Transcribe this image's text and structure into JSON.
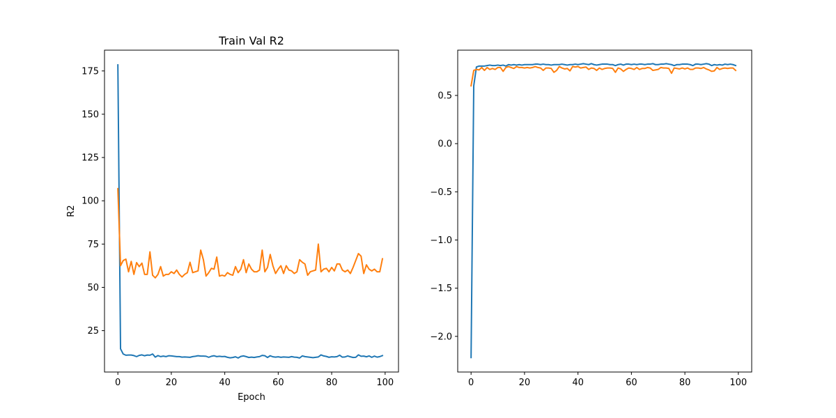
{
  "chart_data": [
    {
      "type": "line",
      "title": "Train Val R2",
      "xlabel": "Epoch",
      "ylabel": "R2",
      "xlim": [
        -5,
        105
      ],
      "ylim": [
        1.1,
        187.0
      ],
      "xticks": [
        0,
        20,
        40,
        60,
        80,
        100
      ],
      "yticks": [
        25,
        50,
        75,
        100,
        125,
        150,
        175
      ],
      "grid": false,
      "legend": "none",
      "x": [
        0,
        1,
        2,
        3,
        4,
        5,
        6,
        7,
        8,
        9,
        10,
        11,
        12,
        13,
        14,
        15,
        16,
        17,
        18,
        19,
        20,
        21,
        22,
        23,
        24,
        25,
        26,
        27,
        28,
        29,
        30,
        31,
        32,
        33,
        34,
        35,
        36,
        37,
        38,
        39,
        40,
        41,
        42,
        43,
        44,
        45,
        46,
        47,
        48,
        49,
        50,
        51,
        52,
        53,
        54,
        55,
        56,
        57,
        58,
        59,
        60,
        61,
        62,
        63,
        64,
        65,
        66,
        67,
        68,
        69,
        70,
        71,
        72,
        73,
        74,
        75,
        76,
        77,
        78,
        79,
        80,
        81,
        82,
        83,
        84,
        85,
        86,
        87,
        88,
        89,
        90,
        91,
        92,
        93,
        94,
        95,
        96,
        97,
        98,
        99
      ],
      "series": [
        {
          "color": "#1f77b4",
          "values": [
            178.5,
            14.5,
            11.5,
            10.8,
            10.9,
            10.9,
            10.6,
            10.0,
            10.7,
            11.0,
            10.5,
            10.9,
            10.8,
            11.5,
            9.7,
            10.6,
            10.0,
            10.3,
            10.0,
            10.5,
            10.4,
            10.2,
            10.0,
            10.0,
            9.7,
            9.8,
            9.7,
            9.6,
            10.0,
            10.2,
            10.5,
            10.3,
            10.3,
            10.2,
            9.6,
            10.2,
            10.5,
            10.0,
            10.2,
            10.0,
            10.1,
            9.6,
            9.3,
            9.5,
            9.9,
            9.2,
            10.1,
            10.4,
            10.0,
            9.5,
            9.7,
            9.5,
            9.8,
            10.0,
            10.7,
            10.5,
            9.5,
            10.5,
            9.9,
            9.7,
            9.9,
            9.6,
            9.8,
            9.7,
            9.6,
            10.0,
            9.7,
            9.6,
            9.2,
            10.4,
            10.0,
            9.8,
            9.6,
            9.4,
            9.6,
            9.8,
            11.0,
            10.4,
            10.1,
            9.6,
            9.9,
            9.8,
            10.0,
            10.8,
            9.7,
            9.8,
            10.4,
            9.9,
            9.5,
            9.6,
            11.0,
            10.2,
            10.3,
            9.9,
            10.4,
            9.6,
            10.3,
            9.7,
            10.0,
            10.6
          ]
        },
        {
          "color": "#ff7f0e",
          "values": [
            107.0,
            62.5,
            65.5,
            66.3,
            59.0,
            65.0,
            57.5,
            64.3,
            62.0,
            64.0,
            57.5,
            57.5,
            70.5,
            57.0,
            55.5,
            57.5,
            62.0,
            56.5,
            57.5,
            57.5,
            59.0,
            58.0,
            60.0,
            57.5,
            56.0,
            57.5,
            58.5,
            64.5,
            58.5,
            59.0,
            59.5,
            71.5,
            66.0,
            56.5,
            58.5,
            61.0,
            60.5,
            67.5,
            56.5,
            57.0,
            56.5,
            58.5,
            57.5,
            57.0,
            62.0,
            58.5,
            60.5,
            66.0,
            58.5,
            63.5,
            60.5,
            59.0,
            59.0,
            60.0,
            71.5,
            59.0,
            61.5,
            69.0,
            62.5,
            58.0,
            60.5,
            62.5,
            58.0,
            62.5,
            60.0,
            59.5,
            58.0,
            59.0,
            66.0,
            64.5,
            63.5,
            57.0,
            59.0,
            59.5,
            60.0,
            75.0,
            59.0,
            60.5,
            61.0,
            59.0,
            61.5,
            59.5,
            63.5,
            63.5,
            60.0,
            59.0,
            60.0,
            58.0,
            61.5,
            65.5,
            69.5,
            68.0,
            58.0,
            63.0,
            60.5,
            59.5,
            60.5,
            59.0,
            59.0,
            66.5
          ]
        }
      ]
    },
    {
      "type": "line",
      "title": "",
      "xlabel": "",
      "ylabel": "",
      "xlim": [
        -5,
        105
      ],
      "ylim": [
        -2.37,
        0.97
      ],
      "xticks": [
        0,
        20,
        40,
        60,
        80,
        100
      ],
      "yticks": [
        -2.0,
        -1.5,
        -1.0,
        -0.5,
        0.0,
        0.5
      ],
      "grid": false,
      "legend": "none",
      "x": [
        0,
        1,
        2,
        3,
        4,
        5,
        6,
        7,
        8,
        9,
        10,
        11,
        12,
        13,
        14,
        15,
        16,
        17,
        18,
        19,
        20,
        21,
        22,
        23,
        24,
        25,
        26,
        27,
        28,
        29,
        30,
        31,
        32,
        33,
        34,
        35,
        36,
        37,
        38,
        39,
        40,
        41,
        42,
        43,
        44,
        45,
        46,
        47,
        48,
        49,
        50,
        51,
        52,
        53,
        54,
        55,
        56,
        57,
        58,
        59,
        60,
        61,
        62,
        63,
        64,
        65,
        66,
        67,
        68,
        69,
        70,
        71,
        72,
        73,
        74,
        75,
        76,
        77,
        78,
        79,
        80,
        81,
        82,
        83,
        84,
        85,
        86,
        87,
        88,
        89,
        90,
        91,
        92,
        93,
        94,
        95,
        96,
        97,
        98,
        99
      ],
      "series": [
        {
          "color": "#1f77b4",
          "values": [
            -2.22,
            0.6,
            0.795,
            0.805,
            0.805,
            0.805,
            0.81,
            0.815,
            0.81,
            0.81,
            0.815,
            0.81,
            0.815,
            0.805,
            0.82,
            0.815,
            0.82,
            0.815,
            0.82,
            0.815,
            0.82,
            0.82,
            0.82,
            0.82,
            0.825,
            0.825,
            0.82,
            0.825,
            0.82,
            0.82,
            0.815,
            0.82,
            0.82,
            0.82,
            0.825,
            0.82,
            0.815,
            0.82,
            0.82,
            0.825,
            0.82,
            0.825,
            0.83,
            0.825,
            0.82,
            0.83,
            0.82,
            0.815,
            0.82,
            0.825,
            0.825,
            0.825,
            0.82,
            0.82,
            0.81,
            0.82,
            0.825,
            0.815,
            0.825,
            0.825,
            0.82,
            0.825,
            0.82,
            0.825,
            0.825,
            0.82,
            0.825,
            0.825,
            0.83,
            0.82,
            0.82,
            0.825,
            0.825,
            0.83,
            0.825,
            0.82,
            0.81,
            0.82,
            0.82,
            0.825,
            0.825,
            0.825,
            0.82,
            0.81,
            0.825,
            0.825,
            0.82,
            0.825,
            0.83,
            0.825,
            0.81,
            0.82,
            0.815,
            0.82,
            0.815,
            0.825,
            0.82,
            0.825,
            0.82,
            0.81
          ]
        },
        {
          "color": "#ff7f0e",
          "values": [
            0.6,
            0.76,
            0.77,
            0.765,
            0.79,
            0.76,
            0.79,
            0.77,
            0.78,
            0.77,
            0.79,
            0.79,
            0.75,
            0.79,
            0.8,
            0.79,
            0.78,
            0.8,
            0.79,
            0.79,
            0.785,
            0.79,
            0.785,
            0.79,
            0.8,
            0.79,
            0.785,
            0.76,
            0.785,
            0.785,
            0.78,
            0.74,
            0.76,
            0.8,
            0.785,
            0.775,
            0.78,
            0.755,
            0.8,
            0.795,
            0.8,
            0.785,
            0.79,
            0.795,
            0.77,
            0.785,
            0.78,
            0.76,
            0.785,
            0.77,
            0.78,
            0.785,
            0.785,
            0.78,
            0.74,
            0.785,
            0.775,
            0.75,
            0.77,
            0.785,
            0.78,
            0.77,
            0.79,
            0.77,
            0.78,
            0.78,
            0.79,
            0.785,
            0.76,
            0.765,
            0.77,
            0.79,
            0.785,
            0.785,
            0.78,
            0.73,
            0.785,
            0.78,
            0.775,
            0.785,
            0.775,
            0.785,
            0.77,
            0.77,
            0.785,
            0.785,
            0.78,
            0.79,
            0.775,
            0.765,
            0.75,
            0.755,
            0.79,
            0.77,
            0.78,
            0.785,
            0.78,
            0.785,
            0.785,
            0.76
          ]
        }
      ]
    }
  ]
}
